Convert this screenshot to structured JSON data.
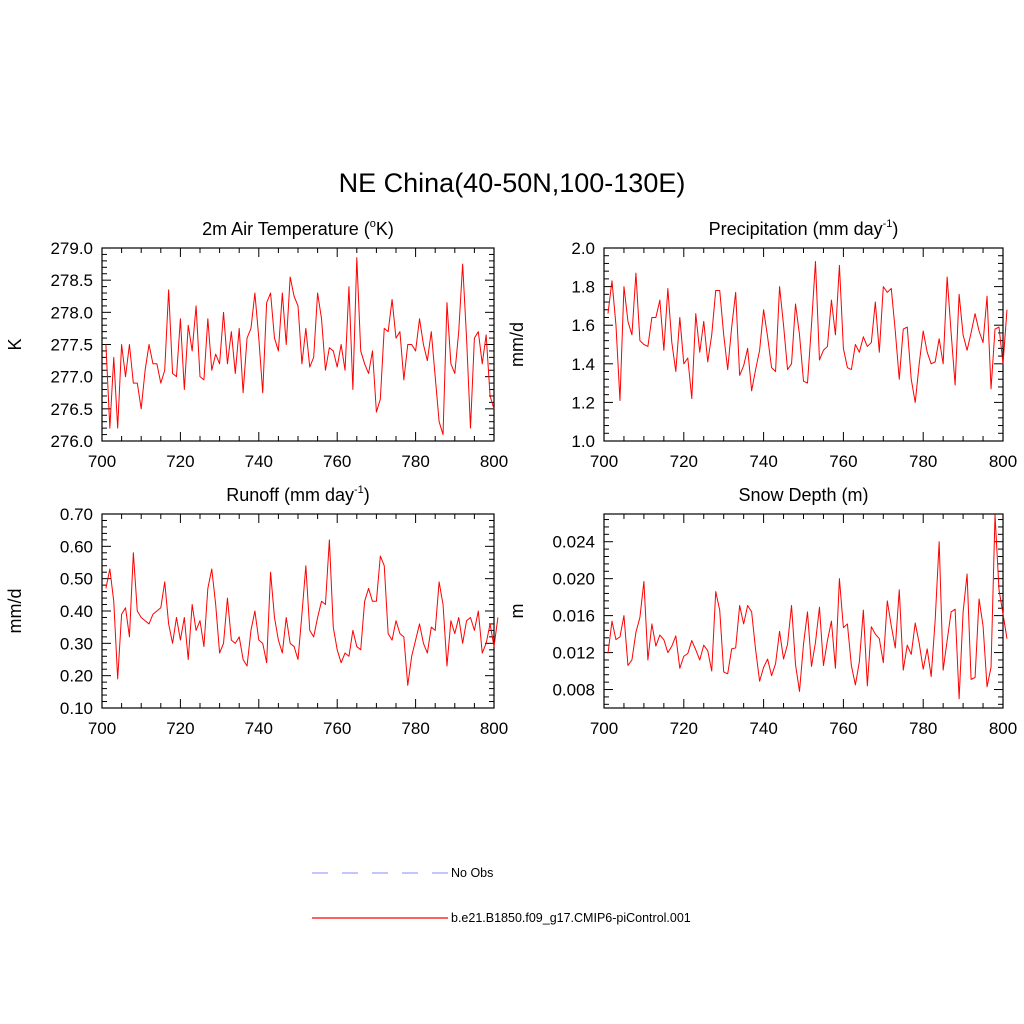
{
  "figure_title": "NE China(40-50N,100-130E)",
  "colors": {
    "model_line": "#ff0000",
    "obs_line": "#a0a0ff",
    "frame": "#000000"
  },
  "legend": [
    {
      "label": "No Obs",
      "style": "dashed",
      "color": "#a0a0ff"
    },
    {
      "label": "b.e21.B1850.f09_g17.CMIP6-piControl.001",
      "style": "solid",
      "color": "#ff0000"
    }
  ],
  "chart_data": [
    {
      "id": "tas",
      "type": "line",
      "title": "2m Air Temperature (°K)",
      "title_text": "2m Air Temperature (",
      "title_sup": "o",
      "title_tail": "K)",
      "xlabel": "",
      "ylabel": "K",
      "xlim": [
        700,
        800
      ],
      "ylim": [
        276.0,
        279.0
      ],
      "xticks": [
        700,
        720,
        740,
        760,
        780,
        800
      ],
      "xtick_labels": [
        "700",
        "720",
        "740",
        "760",
        "780",
        "800"
      ],
      "yticks": [
        276.0,
        276.5,
        277.0,
        277.5,
        278.0,
        278.5,
        279.0
      ],
      "ytick_labels": [
        "276.0",
        "276.5",
        "277.0",
        "277.5",
        "278.0",
        "278.5",
        "279.0"
      ],
      "x_start": 701,
      "values": [
        277.5,
        276.2,
        277.3,
        276.2,
        277.5,
        277.0,
        277.5,
        276.9,
        276.9,
        276.5,
        277.1,
        277.5,
        277.2,
        277.2,
        276.9,
        277.1,
        278.35,
        277.05,
        277.0,
        277.9,
        276.8,
        277.8,
        277.4,
        278.1,
        277.0,
        276.95,
        277.9,
        277.1,
        277.35,
        277.2,
        278.0,
        277.2,
        277.7,
        277.05,
        277.75,
        276.75,
        277.6,
        277.75,
        278.3,
        277.6,
        276.75,
        278.15,
        278.3,
        277.6,
        277.4,
        278.3,
        277.5,
        278.55,
        278.25,
        278.1,
        277.2,
        277.75,
        277.15,
        277.3,
        278.3,
        277.9,
        277.1,
        277.45,
        277.4,
        277.15,
        277.5,
        277.1,
        278.4,
        276.8,
        278.85,
        277.4,
        277.2,
        277.05,
        277.4,
        276.45,
        276.65,
        277.75,
        277.7,
        278.2,
        277.6,
        277.7,
        276.95,
        277.5,
        277.5,
        277.4,
        277.9,
        277.5,
        277.25,
        277.7,
        277.0,
        276.3,
        276.1,
        278.15,
        277.2,
        277.05,
        277.7,
        278.75,
        277.6,
        276.2,
        277.6,
        277.7,
        277.2,
        277.65,
        276.7,
        276.5
      ]
    },
    {
      "id": "pr",
      "type": "line",
      "title": "Precipitation (mm day-1)",
      "title_text": "Precipitation (mm day",
      "title_sup": "-1",
      "title_tail": ")",
      "xlabel": "",
      "ylabel": "mm/d",
      "xlim": [
        700,
        800
      ],
      "ylim": [
        1.0,
        2.0
      ],
      "xticks": [
        700,
        720,
        740,
        760,
        780,
        800
      ],
      "xtick_labels": [
        "700",
        "720",
        "740",
        "760",
        "780",
        "800"
      ],
      "yticks": [
        1.0,
        1.2,
        1.4,
        1.6,
        1.8,
        2.0
      ],
      "ytick_labels": [
        "1.0",
        "1.2",
        "1.4",
        "1.6",
        "1.8",
        "2.0"
      ],
      "x_start": 701,
      "values": [
        1.66,
        1.83,
        1.6,
        1.21,
        1.8,
        1.62,
        1.55,
        1.87,
        1.52,
        1.5,
        1.49,
        1.64,
        1.64,
        1.73,
        1.47,
        1.79,
        1.51,
        1.36,
        1.64,
        1.4,
        1.43,
        1.22,
        1.66,
        1.46,
        1.62,
        1.41,
        1.55,
        1.78,
        1.78,
        1.55,
        1.37,
        1.59,
        1.77,
        1.34,
        1.39,
        1.48,
        1.26,
        1.37,
        1.47,
        1.68,
        1.54,
        1.38,
        1.36,
        1.8,
        1.6,
        1.37,
        1.4,
        1.71,
        1.55,
        1.31,
        1.3,
        1.6,
        1.93,
        1.42,
        1.47,
        1.49,
        1.73,
        1.55,
        1.91,
        1.48,
        1.38,
        1.37,
        1.5,
        1.46,
        1.54,
        1.49,
        1.51,
        1.72,
        1.46,
        1.8,
        1.77,
        1.79,
        1.57,
        1.32,
        1.58,
        1.59,
        1.32,
        1.2,
        1.4,
        1.57,
        1.46,
        1.4,
        1.41,
        1.53,
        1.4,
        1.85,
        1.56,
        1.29,
        1.76,
        1.55,
        1.47,
        1.56,
        1.66,
        1.57,
        1.51,
        1.75,
        1.27,
        1.58,
        1.59,
        1.4,
        1.68
      ]
    },
    {
      "id": "mrro",
      "type": "line",
      "title": "Runoff (mm day-1)",
      "title_text": "Runoff (mm day",
      "title_sup": "-1",
      "title_tail": ")",
      "xlabel": "",
      "ylabel": "mm/d",
      "xlim": [
        700,
        800
      ],
      "ylim": [
        0.1,
        0.7
      ],
      "xticks": [
        700,
        720,
        740,
        760,
        780,
        800
      ],
      "xtick_labels": [
        "700",
        "720",
        "740",
        "760",
        "780",
        "800"
      ],
      "yticks": [
        0.1,
        0.2,
        0.3,
        0.4,
        0.5,
        0.6,
        0.7
      ],
      "ytick_labels": [
        "0.10",
        "0.20",
        "0.30",
        "0.40",
        "0.50",
        "0.60",
        "0.70"
      ],
      "x_start": 701,
      "values": [
        0.47,
        0.53,
        0.43,
        0.19,
        0.39,
        0.41,
        0.32,
        0.58,
        0.4,
        0.38,
        0.37,
        0.36,
        0.39,
        0.4,
        0.41,
        0.49,
        0.36,
        0.3,
        0.38,
        0.31,
        0.38,
        0.25,
        0.42,
        0.34,
        0.37,
        0.29,
        0.47,
        0.53,
        0.42,
        0.27,
        0.3,
        0.44,
        0.31,
        0.3,
        0.32,
        0.25,
        0.23,
        0.34,
        0.4,
        0.31,
        0.3,
        0.24,
        0.52,
        0.38,
        0.31,
        0.27,
        0.38,
        0.3,
        0.29,
        0.25,
        0.39,
        0.54,
        0.34,
        0.32,
        0.38,
        0.43,
        0.42,
        0.62,
        0.35,
        0.28,
        0.24,
        0.27,
        0.26,
        0.34,
        0.29,
        0.28,
        0.43,
        0.47,
        0.43,
        0.43,
        0.57,
        0.54,
        0.33,
        0.31,
        0.37,
        0.33,
        0.32,
        0.17,
        0.26,
        0.31,
        0.36,
        0.3,
        0.27,
        0.35,
        0.34,
        0.49,
        0.42,
        0.23,
        0.37,
        0.33,
        0.38,
        0.3,
        0.37,
        0.38,
        0.34,
        0.4,
        0.27,
        0.3,
        0.36,
        0.29,
        0.38
      ]
    },
    {
      "id": "snd",
      "type": "line",
      "title": "Snow Depth (m)",
      "title_text": "Snow Depth (m)",
      "title_sup": "",
      "title_tail": "",
      "xlabel": "",
      "ylabel": "m",
      "xlim": [
        700,
        800
      ],
      "ylim": [
        0.006,
        0.027
      ],
      "xticks": [
        700,
        720,
        740,
        760,
        780,
        800
      ],
      "xtick_labels": [
        "700",
        "720",
        "740",
        "760",
        "780",
        "800"
      ],
      "yticks": [
        0.008,
        0.012,
        0.016,
        0.02,
        0.024
      ],
      "ytick_labels": [
        "0.008",
        "0.012",
        "0.016",
        "0.020",
        "0.024"
      ],
      "x_start": 701,
      "values": [
        0.0119,
        0.0154,
        0.0134,
        0.0137,
        0.016,
        0.0106,
        0.0112,
        0.0142,
        0.0158,
        0.0197,
        0.0112,
        0.0151,
        0.0127,
        0.0139,
        0.0134,
        0.012,
        0.0127,
        0.0138,
        0.0103,
        0.0116,
        0.0119,
        0.0133,
        0.0123,
        0.0112,
        0.0128,
        0.0122,
        0.01,
        0.0186,
        0.0166,
        0.0099,
        0.0097,
        0.0124,
        0.0125,
        0.0171,
        0.0151,
        0.0171,
        0.0164,
        0.0123,
        0.0089,
        0.0104,
        0.0113,
        0.0095,
        0.0108,
        0.0143,
        0.0113,
        0.0129,
        0.0171,
        0.0107,
        0.0078,
        0.0129,
        0.0164,
        0.0105,
        0.0131,
        0.0169,
        0.0106,
        0.0133,
        0.0154,
        0.0103,
        0.02,
        0.0147,
        0.0151,
        0.0106,
        0.0085,
        0.011,
        0.0166,
        0.0084,
        0.0148,
        0.014,
        0.0135,
        0.0109,
        0.0176,
        0.0149,
        0.0125,
        0.0188,
        0.0101,
        0.0128,
        0.0118,
        0.0152,
        0.013,
        0.0102,
        0.0124,
        0.0094,
        0.0155,
        0.024,
        0.0101,
        0.0133,
        0.0164,
        0.0167,
        0.007,
        0.0164,
        0.0205,
        0.0091,
        0.0093,
        0.0178,
        0.0149,
        0.0083,
        0.0104,
        0.0269,
        0.0188,
        0.0162,
        0.0135
      ]
    }
  ]
}
